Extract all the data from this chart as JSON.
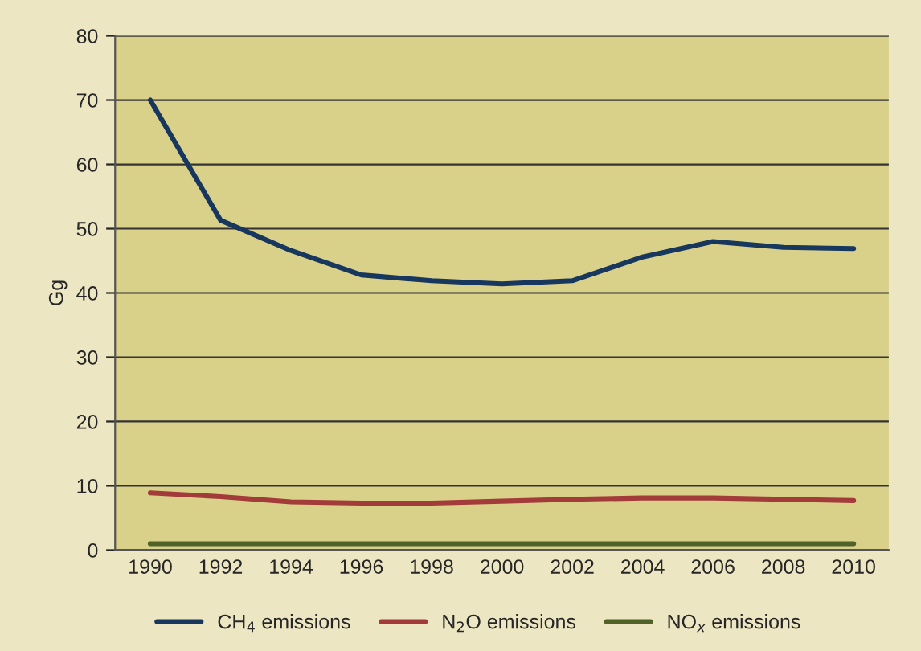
{
  "chart_data": {
    "type": "line",
    "ylabel": "Gg",
    "categories": [
      "1990",
      "1992",
      "1994",
      "1996",
      "1998",
      "2000",
      "2002",
      "2004",
      "2006",
      "2008",
      "2010"
    ],
    "series": [
      {
        "name": "CH$_{4}$ emissions",
        "color": "#17375e",
        "values": [
          70,
          51.3,
          46.6,
          42.8,
          41.9,
          41.4,
          41.9,
          45.6,
          48.0,
          47.1,
          46.9
        ]
      },
      {
        "name": "N$_{2}$O emissions",
        "color": "#a33b3b",
        "values": [
          8.9,
          8.3,
          7.5,
          7.3,
          7.3,
          7.6,
          7.9,
          8.1,
          8.1,
          7.9,
          7.7
        ]
      },
      {
        "name": "NO$_{x}$ emissions",
        "color": "#4f6228",
        "values": [
          1,
          1,
          1,
          1,
          1,
          1,
          1,
          1,
          1,
          1,
          1
        ]
      }
    ],
    "ylim": [
      0,
      80
    ],
    "yticks": [
      0,
      10,
      20,
      30,
      40,
      50,
      60,
      70,
      80
    ],
    "grid": "y",
    "legend": "bottom",
    "marker": "none",
    "line_style": "solid"
  }
}
